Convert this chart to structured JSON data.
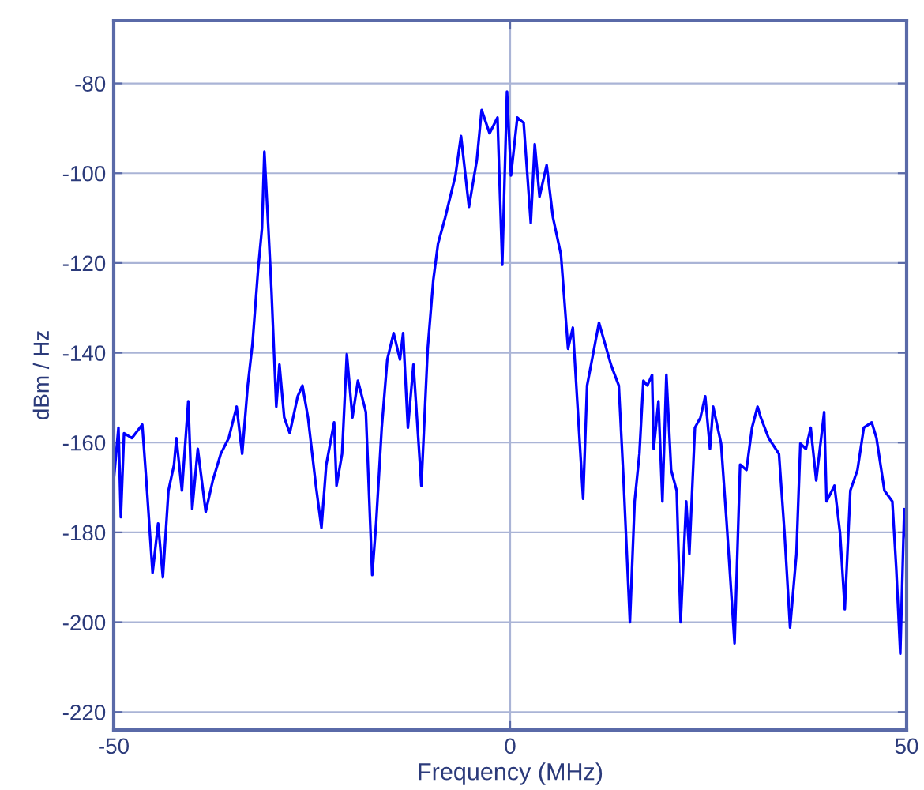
{
  "chart_data": {
    "type": "line",
    "xlabel": "Frequency (MHz)",
    "ylabel": "dBm / Hz",
    "xlim": [
      -50,
      50
    ],
    "xticks": [
      -50,
      0,
      50
    ],
    "ylim": [
      -224,
      -66
    ],
    "yticks": [
      -80,
      -100,
      -120,
      -140,
      -160,
      -180,
      -200,
      -220
    ],
    "grid": true,
    "marker": "none",
    "line_style": "solid",
    "series": [
      {
        "color": "#0000ff",
        "x": [
          -50.0,
          -49.4,
          -49.1,
          -48.7,
          -47.7,
          -46.4,
          -45.8,
          -45.1,
          -44.4,
          -43.8,
          -43.1,
          -42.4,
          -42.1,
          -41.4,
          -40.6,
          -40.1,
          -39.4,
          -38.4,
          -37.5,
          -36.5,
          -35.5,
          -34.5,
          -33.8,
          -33.1,
          -32.5,
          -31.8,
          -31.3,
          -31.0,
          -30.5,
          -30.1,
          -29.5,
          -29.1,
          -28.5,
          -27.8,
          -26.8,
          -26.2,
          -25.5,
          -24.5,
          -23.8,
          -23.2,
          -22.2,
          -21.9,
          -21.2,
          -20.6,
          -19.9,
          -19.2,
          -18.2,
          -17.4,
          -16.9,
          -16.2,
          -15.5,
          -14.7,
          -13.9,
          -13.5,
          -12.9,
          -12.2,
          -11.2,
          -10.4,
          -9.7,
          -9.1,
          -8.2,
          -6.9,
          -6.2,
          -5.2,
          -4.2,
          -3.6,
          -2.6,
          -1.6,
          -1.0,
          -0.4,
          0.1,
          0.9,
          1.7,
          2.6,
          3.1,
          3.7,
          4.6,
          5.4,
          6.4,
          7.3,
          7.9,
          9.2,
          9.7,
          10.7,
          11.2,
          12.7,
          13.7,
          14.3,
          15.1,
          15.7,
          16.3,
          16.8,
          17.3,
          17.9,
          18.1,
          18.7,
          19.2,
          19.7,
          20.3,
          21.0,
          21.5,
          22.2,
          22.6,
          23.3,
          24.0,
          24.6,
          25.2,
          25.6,
          26.6,
          27.3,
          28.3,
          29.0,
          29.8,
          30.5,
          31.2,
          31.6,
          32.6,
          33.9,
          34.6,
          35.3,
          36.1,
          36.6,
          37.3,
          37.9,
          38.6,
          39.6,
          39.9,
          40.9,
          41.6,
          42.2,
          42.9,
          43.8,
          44.6,
          45.6,
          46.2,
          47.2,
          48.2,
          48.7,
          49.2,
          49.7,
          50.0
        ],
        "values": [
          -168.4,
          -156.7,
          -176.6,
          -157.9,
          -159,
          -156,
          -170.7,
          -189,
          -178,
          -190,
          -170.7,
          -165,
          -159,
          -170.7,
          -150.8,
          -174.8,
          -161.4,
          -175.4,
          -168.4,
          -162.5,
          -159,
          -152,
          -162.5,
          -147.3,
          -138,
          -121.6,
          -112.2,
          -95.2,
          -112.2,
          -126.3,
          -152,
          -142.6,
          -154.4,
          -157.9,
          -149.7,
          -147.3,
          -154.4,
          -169.6,
          -179,
          -165,
          -155.5,
          -169.6,
          -162.5,
          -140.3,
          -154.4,
          -146.2,
          -153.2,
          -189.5,
          -177.8,
          -156.7,
          -141.5,
          -135.6,
          -141.5,
          -135.6,
          -156.7,
          -142.6,
          -169.6,
          -139.1,
          -123.9,
          -115.7,
          -109.9,
          -100.5,
          -91.7,
          -107.5,
          -97,
          -85.9,
          -91.1,
          -87.6,
          -120.4,
          -81.8,
          -100.5,
          -87.6,
          -88.8,
          -111.1,
          -93.5,
          -105.2,
          -98.2,
          -109.9,
          -118.1,
          -139.1,
          -134.4,
          -172.5,
          -147.3,
          -138,
          -133.3,
          -142.6,
          -147.3,
          -168.4,
          -200,
          -173.1,
          -162.5,
          -146.2,
          -147.3,
          -144.9,
          -161.4,
          -150.8,
          -173.1,
          -144.9,
          -166.1,
          -170.7,
          -200,
          -173.1,
          -184.8,
          -156.7,
          -154.4,
          -149.7,
          -161.4,
          -152,
          -160.2,
          -177.8,
          -204.7,
          -164.9,
          -166.1,
          -156.7,
          -152,
          -154.4,
          -159,
          -162.5,
          -180.1,
          -201.2,
          -184.8,
          -160.2,
          -161.4,
          -156.7,
          -168.4,
          -153.2,
          -173.1,
          -169.6,
          -180.1,
          -197.1,
          -170.7,
          -166.1,
          -156.7,
          -155.5,
          -159,
          -170.7,
          -173.1,
          -188.3,
          -207,
          -174.8,
          -182.4
        ]
      }
    ]
  }
}
